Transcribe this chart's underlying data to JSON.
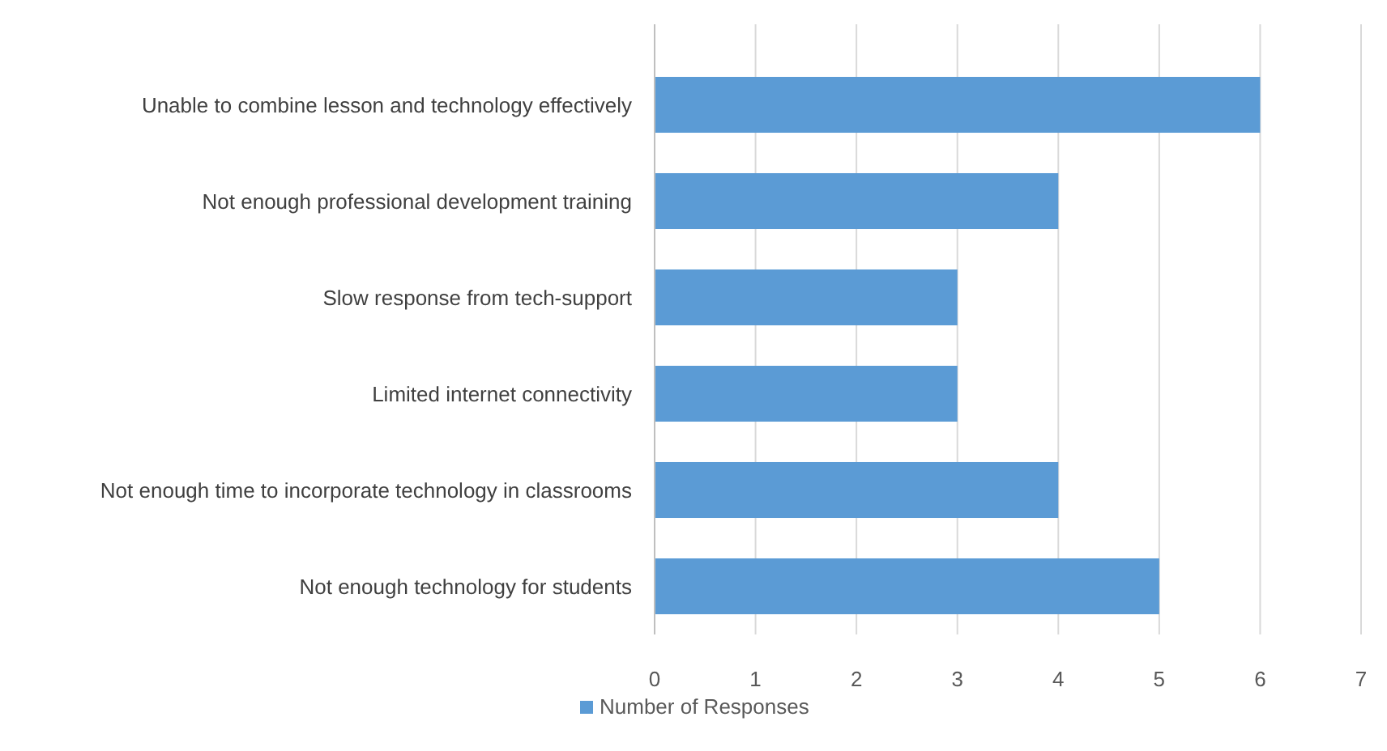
{
  "chart_data": {
    "type": "bar",
    "orientation": "horizontal",
    "categories": [
      "Unable to combine lesson and technology effectively",
      "Not enough professional development training",
      "Slow response from tech-support",
      "Limited internet connectivity",
      "Not enough time to incorporate technology in classrooms",
      "Not enough technology for students"
    ],
    "series": [
      {
        "name": "Number of Responses",
        "color": "#5b9bd5",
        "values": [
          6,
          4,
          3,
          3,
          4,
          5
        ]
      }
    ],
    "xlim": [
      0,
      7
    ],
    "xticks": [
      0,
      1,
      2,
      3,
      4,
      5,
      6,
      7
    ],
    "grid": "x",
    "legend": "bottom"
  }
}
